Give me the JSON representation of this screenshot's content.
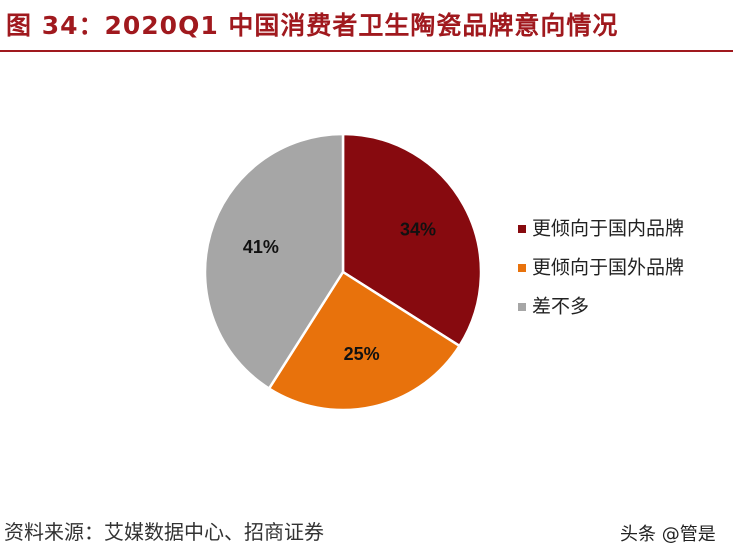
{
  "header": {
    "title": "图 34：2020Q1 中国消费者卫生陶瓷品牌意向情况"
  },
  "chart_data": {
    "type": "pie",
    "title": "2020Q1 中国消费者卫生陶瓷品牌意向情况",
    "categories": [
      "更倾向于国内品牌",
      "更倾向于国外品牌",
      "差不多"
    ],
    "values": [
      34,
      25,
      41
    ],
    "labels": [
      "34%",
      "25%",
      "41%"
    ],
    "colors": [
      "#870a0f",
      "#e8720c",
      "#a6a6a6"
    ],
    "legend_position": "right"
  },
  "footer": {
    "source": "资料来源：艾媒数据中心、招商证券",
    "watermark": "头条 @管是"
  }
}
